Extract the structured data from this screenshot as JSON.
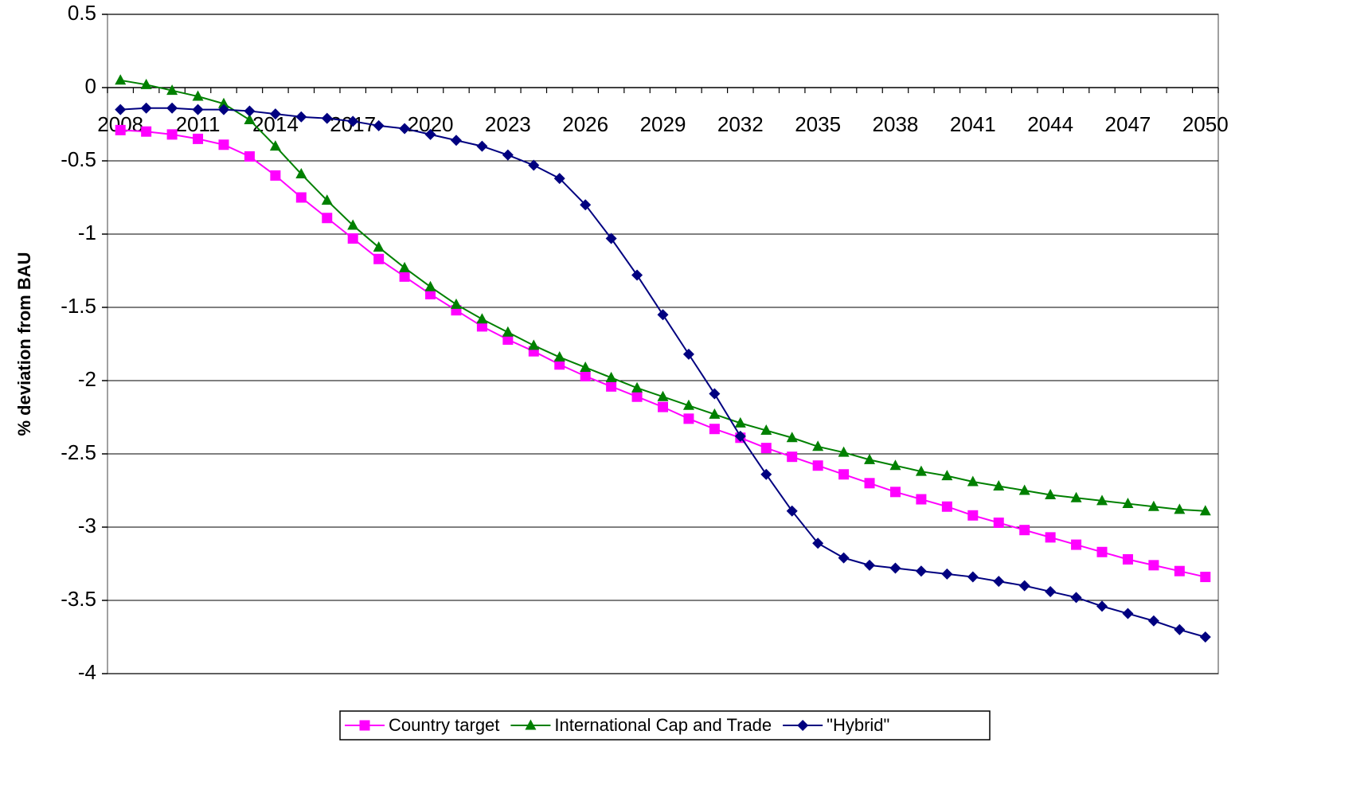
{
  "chart_data": {
    "type": "line",
    "y_label": "% deviation from BAU",
    "categories": [
      "2008",
      null,
      null,
      "2011",
      null,
      null,
      "2014",
      null,
      null,
      "2017",
      null,
      null,
      "2020",
      null,
      null,
      "2023",
      null,
      null,
      "2026",
      null,
      null,
      "2029",
      null,
      null,
      "2032",
      null,
      null,
      "2035",
      null,
      null,
      "2038",
      null,
      null,
      "2041",
      null,
      null,
      "2044",
      null,
      null,
      "2047",
      null,
      null,
      "2050"
    ],
    "ylim": [
      -4,
      0.5
    ],
    "yticks": [
      0.5,
      0,
      -0.5,
      -1,
      -1.5,
      -2,
      -2.5,
      -3,
      -3.5,
      -4
    ],
    "grid": true,
    "legend": "bottom",
    "series": [
      {
        "name": "Country target",
        "color": "#ff00ff",
        "marker": "square",
        "values": [
          -0.29,
          -0.3,
          -0.32,
          -0.35,
          -0.39,
          -0.47,
          -0.6,
          -0.75,
          -0.89,
          -1.03,
          -1.17,
          -1.29,
          -1.41,
          -1.52,
          -1.63,
          -1.72,
          -1.8,
          -1.89,
          -1.97,
          -2.04,
          -2.11,
          -2.18,
          -2.26,
          -2.33,
          -2.39,
          -2.46,
          -2.52,
          -2.58,
          -2.64,
          -2.7,
          -2.76,
          -2.81,
          -2.86,
          -2.92,
          -2.97,
          -3.02,
          -3.07,
          -3.12,
          -3.17,
          -3.22,
          -3.26,
          -3.3,
          -3.34
        ]
      },
      {
        "name": "International Cap and Trade",
        "color": "#008000",
        "marker": "triangle",
        "values": [
          0.05,
          0.02,
          -0.02,
          -0.06,
          -0.11,
          -0.22,
          -0.4,
          -0.59,
          -0.77,
          -0.94,
          -1.09,
          -1.23,
          -1.36,
          -1.48,
          -1.58,
          -1.67,
          -1.76,
          -1.84,
          -1.91,
          -1.98,
          -2.05,
          -2.11,
          -2.17,
          -2.23,
          -2.29,
          -2.34,
          -2.39,
          -2.45,
          -2.49,
          -2.54,
          -2.58,
          -2.62,
          -2.65,
          -2.69,
          -2.72,
          -2.75,
          -2.78,
          -2.8,
          -2.82,
          -2.84,
          -2.86,
          -2.88,
          -2.89
        ]
      },
      {
        "name": "\"Hybrid\"",
        "color": "#000080",
        "marker": "diamond",
        "values": [
          -0.15,
          -0.14,
          -0.14,
          -0.15,
          -0.15,
          -0.16,
          -0.18,
          -0.2,
          -0.21,
          -0.23,
          -0.26,
          -0.28,
          -0.32,
          -0.36,
          -0.4,
          -0.46,
          -0.53,
          -0.62,
          -0.8,
          -1.03,
          -1.28,
          -1.55,
          -1.82,
          -2.09,
          -2.38,
          -2.64,
          -2.89,
          -3.11,
          -3.21,
          -3.26,
          -3.28,
          -3.3,
          -3.32,
          -3.34,
          -3.37,
          -3.4,
          -3.44,
          -3.48,
          -3.54,
          -3.59,
          -3.64,
          -3.7,
          -3.75
        ]
      }
    ]
  }
}
